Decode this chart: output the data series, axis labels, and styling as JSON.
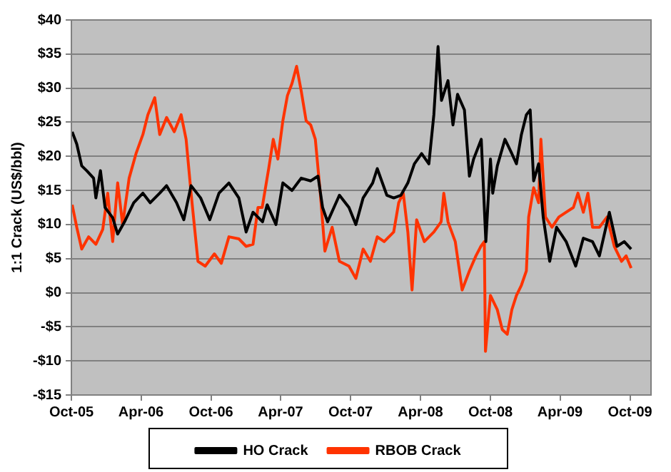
{
  "chart_data": {
    "type": "line",
    "ylabel": "1:1 Crack (US$/bbl)",
    "xlim": [
      "2005-10-01",
      "2009-11-25"
    ],
    "xticks": [
      {
        "value": "2005-10-01",
        "label": "Oct-05"
      },
      {
        "value": "2006-04-01",
        "label": "Apr-06"
      },
      {
        "value": "2006-10-01",
        "label": "Oct-06"
      },
      {
        "value": "2007-04-01",
        "label": "Apr-07"
      },
      {
        "value": "2007-10-01",
        "label": "Oct-07"
      },
      {
        "value": "2008-04-01",
        "label": "Apr-08"
      },
      {
        "value": "2008-10-01",
        "label": "Oct-08"
      },
      {
        "value": "2009-04-01",
        "label": "Apr-09"
      },
      {
        "value": "2009-10-01",
        "label": "Oct-09"
      }
    ],
    "ylim": [
      -15,
      40
    ],
    "yticks": [
      {
        "value": -15,
        "label": "-$15"
      },
      {
        "value": -10,
        "label": "-$10"
      },
      {
        "value": -5,
        "label": "-$5"
      },
      {
        "value": 0,
        "label": "$0"
      },
      {
        "value": 5,
        "label": "$5"
      },
      {
        "value": 10,
        "label": "$10"
      },
      {
        "value": 15,
        "label": "$15"
      },
      {
        "value": 20,
        "label": "$20"
      },
      {
        "value": 25,
        "label": "$25"
      },
      {
        "value": 30,
        "label": "$30"
      },
      {
        "value": 35,
        "label": "$35"
      },
      {
        "value": 40,
        "label": "$40"
      }
    ],
    "grid": "y",
    "legend": "bottom",
    "marker": "none",
    "line_style": "solid",
    "series": [
      {
        "name": "HO Crack",
        "color": "#000000",
        "x": [
          "2005-10-03",
          "2005-10-15",
          "2005-10-28",
          "2005-11-10",
          "2005-11-28",
          "2005-12-04",
          "2005-12-16",
          "2005-12-28",
          "2006-01-17",
          "2006-01-30",
          "2006-02-17",
          "2006-03-13",
          "2006-04-06",
          "2006-04-25",
          "2006-05-20",
          "2006-06-07",
          "2006-07-03",
          "2006-07-22",
          "2006-08-10",
          "2006-09-04",
          "2006-09-28",
          "2006-10-22",
          "2006-11-17",
          "2006-12-13",
          "2007-01-01",
          "2007-01-19",
          "2007-02-13",
          "2007-02-25",
          "2007-03-20",
          "2007-04-07",
          "2007-05-01",
          "2007-05-25",
          "2007-06-19",
          "2007-07-08",
          "2007-07-20",
          "2007-08-02",
          "2007-09-02",
          "2007-09-27",
          "2007-10-15",
          "2007-11-03",
          "2007-11-28",
          "2007-12-10",
          "2008-01-04",
          "2008-01-22",
          "2008-02-10",
          "2008-02-28",
          "2008-03-16",
          "2008-04-04",
          "2008-04-23",
          "2008-05-06",
          "2008-05-17",
          "2008-05-26",
          "2008-06-12",
          "2008-06-25",
          "2008-07-07",
          "2008-07-25",
          "2008-08-07",
          "2008-08-18",
          "2008-09-07",
          "2008-09-19",
          "2008-10-01",
          "2008-10-07",
          "2008-10-19",
          "2008-11-08",
          "2008-11-26",
          "2008-12-08",
          "2008-12-21",
          "2009-01-03",
          "2009-01-13",
          "2009-01-22",
          "2009-02-04",
          "2009-02-16",
          "2009-03-05",
          "2009-03-23",
          "2009-04-17",
          "2009-05-12",
          "2009-06-01",
          "2009-06-25",
          "2009-07-13",
          "2009-08-08",
          "2009-08-28",
          "2009-09-16",
          "2009-10-04"
        ],
        "values": [
          23.6,
          21.8,
          18.6,
          17.9,
          16.8,
          13.9,
          17.9,
          12.5,
          11,
          8.6,
          10.4,
          13.2,
          14.6,
          13.2,
          14.6,
          15.7,
          13.2,
          10.7,
          15.7,
          13.9,
          10.7,
          14.6,
          16.1,
          13.9,
          8.9,
          11.8,
          10.4,
          12.9,
          10,
          16.1,
          15,
          16.8,
          16.4,
          17.1,
          12.5,
          10.4,
          14.3,
          12.5,
          10,
          13.9,
          16.1,
          18.2,
          14.3,
          13.9,
          14.3,
          16.1,
          18.9,
          20.4,
          18.9,
          26.1,
          36.1,
          28.2,
          31.1,
          24.6,
          29.1,
          26.8,
          17.1,
          19.6,
          22.5,
          7.5,
          19.6,
          14.6,
          18.6,
          22.5,
          20.4,
          18.9,
          23.2,
          26.1,
          26.8,
          16.4,
          18.9,
          11.1,
          4.6,
          9.6,
          7.5,
          3.9,
          8,
          7.5,
          5.4,
          11.8,
          6.8,
          7.5,
          6.4
        ]
      },
      {
        "name": "RBOB Crack",
        "color": "#ff3300",
        "x": [
          "2005-10-03",
          "2005-10-15",
          "2005-10-28",
          "2005-11-15",
          "2005-12-04",
          "2005-12-22",
          "2006-01-04",
          "2006-01-17",
          "2006-01-30",
          "2006-02-12",
          "2006-03-01",
          "2006-03-19",
          "2006-04-06",
          "2006-04-19",
          "2006-05-07",
          "2006-05-20",
          "2006-06-07",
          "2006-06-27",
          "2006-07-15",
          "2006-07-28",
          "2006-08-10",
          "2006-08-28",
          "2006-09-16",
          "2006-10-10",
          "2006-10-28",
          "2006-11-17",
          "2006-12-13",
          "2007-01-01",
          "2007-01-19",
          "2007-02-01",
          "2007-02-12",
          "2007-03-01",
          "2007-03-13",
          "2007-03-25",
          "2007-04-07",
          "2007-04-19",
          "2007-05-01",
          "2007-05-13",
          "2007-05-25",
          "2007-06-07",
          "2007-06-19",
          "2007-07-01",
          "2007-07-14",
          "2007-07-26",
          "2007-08-14",
          "2007-09-02",
          "2007-09-27",
          "2007-10-15",
          "2007-11-03",
          "2007-11-22",
          "2007-12-10",
          "2007-12-28",
          "2008-01-22",
          "2008-02-04",
          "2008-02-16",
          "2008-02-28",
          "2008-03-10",
          "2008-03-22",
          "2008-04-11",
          "2008-05-06",
          "2008-05-25",
          "2008-06-01",
          "2008-06-12",
          "2008-07-01",
          "2008-07-19",
          "2008-08-07",
          "2008-08-24",
          "2008-09-06",
          "2008-09-15",
          "2008-09-18",
          "2008-10-01",
          "2008-10-19",
          "2008-11-01",
          "2008-11-14",
          "2008-11-26",
          "2008-12-08",
          "2008-12-21",
          "2009-01-03",
          "2009-01-09",
          "2009-01-22",
          "2009-02-04",
          "2009-02-10",
          "2009-02-22",
          "2009-03-11",
          "2009-03-29",
          "2009-04-17",
          "2009-05-06",
          "2009-05-18",
          "2009-06-01",
          "2009-06-13",
          "2009-06-25",
          "2009-07-13",
          "2009-08-02",
          "2009-08-21",
          "2009-09-09",
          "2009-09-21",
          "2009-10-04"
        ],
        "values": [
          12.9,
          9.6,
          6.4,
          8.2,
          7.1,
          9.3,
          14.6,
          7.5,
          16.1,
          10,
          16.8,
          20.4,
          23.2,
          26.1,
          28.6,
          23.2,
          25.7,
          23.6,
          26.1,
          22.5,
          14.6,
          4.6,
          3.9,
          5.7,
          4.3,
          8.2,
          7.9,
          6.8,
          7.1,
          12.5,
          12.5,
          18.2,
          22.5,
          19.6,
          25.2,
          28.9,
          30.7,
          33.2,
          29.6,
          25.2,
          24.6,
          22.5,
          14.6,
          6.1,
          9.6,
          4.6,
          3.9,
          2.1,
          6.4,
          4.6,
          8.2,
          7.5,
          8.9,
          13.2,
          14.6,
          8.9,
          0.4,
          10.7,
          7.5,
          8.9,
          10.4,
          14.6,
          10.4,
          7.5,
          0.4,
          3.2,
          5.4,
          6.8,
          7.5,
          -8.6,
          -0.4,
          -2.5,
          -5.4,
          -6.1,
          -2.5,
          -0.4,
          1.1,
          3.2,
          11.1,
          15.4,
          13.2,
          22.5,
          11.1,
          9.6,
          11.1,
          11.8,
          12.5,
          14.6,
          11.8,
          14.6,
          9.6,
          9.6,
          11.1,
          6.8,
          4.6,
          5.4,
          3.6
        ]
      }
    ]
  }
}
